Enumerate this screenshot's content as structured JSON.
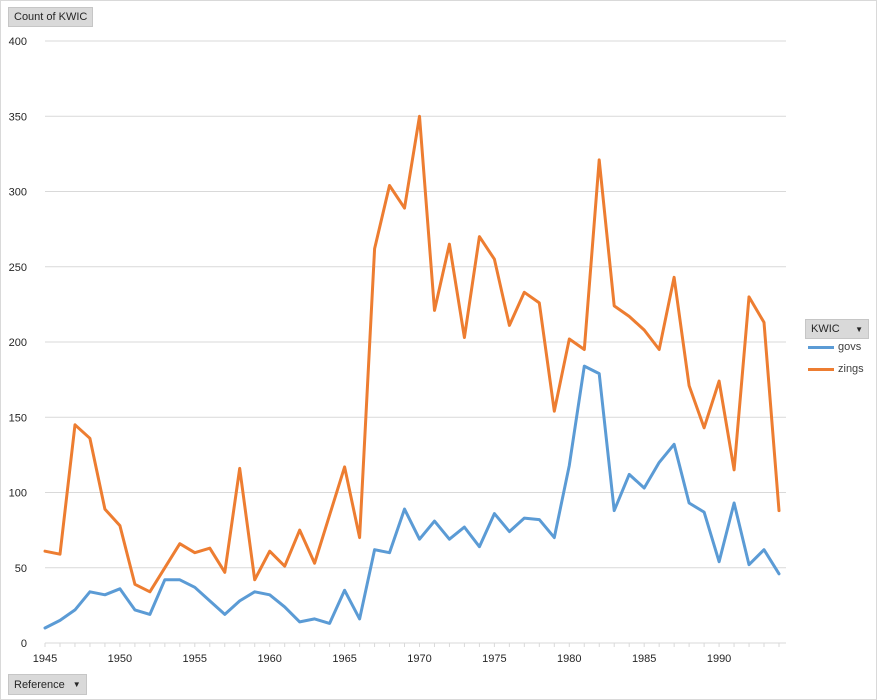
{
  "pivot": {
    "value_field_label": "Count of KWIC",
    "axis_field_label": "Reference",
    "legend_field_label": "KWIC"
  },
  "chart_data": {
    "type": "line",
    "x": [
      1945,
      1946,
      1947,
      1948,
      1949,
      1950,
      1951,
      1952,
      1953,
      1954,
      1955,
      1956,
      1957,
      1958,
      1959,
      1960,
      1961,
      1962,
      1963,
      1964,
      1965,
      1966,
      1967,
      1968,
      1969,
      1970,
      1971,
      1972,
      1973,
      1974,
      1975,
      1976,
      1977,
      1978,
      1979,
      1980,
      1981,
      1982,
      1983,
      1984,
      1985,
      1986,
      1987,
      1988,
      1989,
      1990,
      1991,
      1992,
      1993,
      1994
    ],
    "x_ticks": [
      1945,
      1950,
      1955,
      1960,
      1965,
      1970,
      1975,
      1980,
      1985,
      1990
    ],
    "ylim": [
      0,
      400
    ],
    "y_ticks": [
      0,
      50,
      100,
      150,
      200,
      250,
      300,
      350,
      400
    ],
    "grid": true,
    "legend_position": "right",
    "series": [
      {
        "name": "govs",
        "color": "#5b9bd5",
        "values": [
          10,
          15,
          22,
          34,
          32,
          36,
          22,
          19,
          42,
          42,
          37,
          28,
          19,
          28,
          34,
          32,
          24,
          14,
          16,
          13,
          35,
          16,
          62,
          60,
          89,
          69,
          81,
          69,
          77,
          64,
          86,
          74,
          83,
          82,
          70,
          118,
          184,
          179,
          88,
          112,
          103,
          120,
          132,
          93,
          87,
          54,
          93,
          52,
          62,
          46
        ]
      },
      {
        "name": "zings",
        "color": "#ed7d31",
        "values": [
          61,
          59,
          145,
          136,
          89,
          78,
          39,
          34,
          50,
          66,
          60,
          63,
          47,
          116,
          42,
          61,
          51,
          75,
          53,
          85,
          117,
          70,
          262,
          304,
          289,
          350,
          221,
          265,
          203,
          270,
          255,
          211,
          233,
          226,
          154,
          202,
          195,
          321,
          224,
          217,
          208,
          195,
          243,
          171,
          143,
          174,
          115,
          230,
          213,
          88
        ]
      }
    ]
  }
}
